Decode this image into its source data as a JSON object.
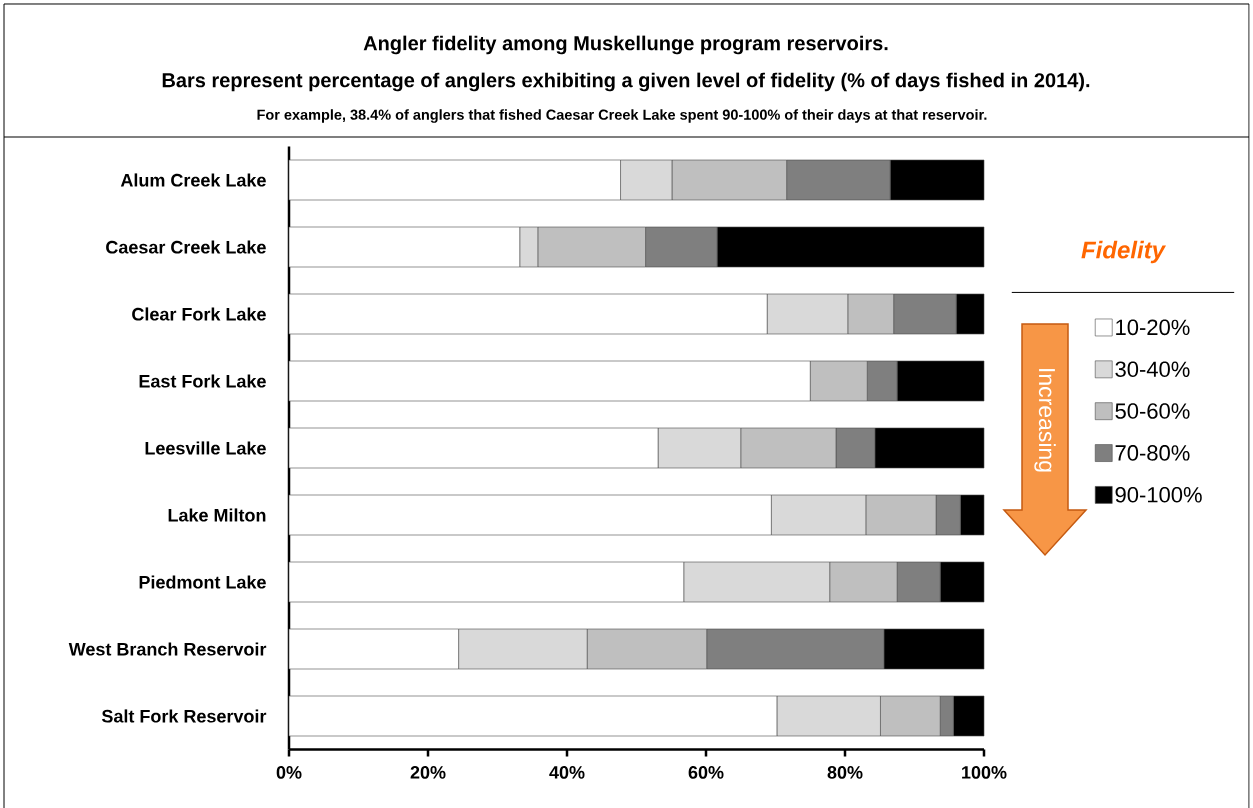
{
  "chart_data": {
    "type": "bar",
    "orientation": "horizontal",
    "stacked": true,
    "title": "Angler fidelity among Muskellunge program reservoirs.",
    "subtitle": "Bars represent percentage of anglers exhibiting a given level of fidelity (% of days fished in 2014).",
    "annotations": [
      "For example, 38.4% of anglers that fished Caesar Creek Lake spent 90-100% of their days at that reservoir.",
      "Increasing"
    ],
    "categories": [
      "Alum Creek Lake",
      "Caesar Creek Lake",
      "Clear Fork Lake",
      "East Fork Lake",
      "Leesville Lake",
      "Lake Milton",
      "Piedmont Lake",
      "West Branch Reservoir",
      "Salt Fork Reservoir"
    ],
    "series": [
      {
        "name": "10-20%",
        "color": "#ffffff",
        "values": [
          47.7,
          33.2,
          68.8,
          75.0,
          53.1,
          69.4,
          56.8,
          24.4,
          70.2
        ]
      },
      {
        "name": "30-40%",
        "color": "#d9d9d9",
        "values": [
          7.4,
          2.6,
          11.6,
          0,
          11.9,
          13.6,
          21.0,
          18.5,
          14.9
        ]
      },
      {
        "name": "50-60%",
        "color": "#bfbfbf",
        "values": [
          16.5,
          15.5,
          6.6,
          8.2,
          13.7,
          10.1,
          9.7,
          17.2,
          8.6
        ]
      },
      {
        "name": "70-80%",
        "color": "#7f7f7f",
        "values": [
          14.9,
          10.3,
          9.0,
          4.3,
          5.6,
          3.5,
          6.2,
          25.5,
          1.9
        ]
      },
      {
        "name": "90-100%",
        "color": "#000000",
        "values": [
          13.5,
          38.4,
          4.0,
          12.5,
          15.7,
          3.4,
          6.3,
          14.4,
          4.4
        ]
      }
    ],
    "xlim": [
      0,
      100
    ],
    "xticks": [
      {
        "value": 0,
        "label": "0%"
      },
      {
        "value": 20,
        "label": "20%"
      },
      {
        "value": 40,
        "label": "40%"
      },
      {
        "value": 60,
        "label": "60%"
      },
      {
        "value": 80,
        "label": "80%"
      },
      {
        "value": 100,
        "label": "100%"
      }
    ],
    "legend": "right",
    "legend_title": "Fidelity"
  }
}
